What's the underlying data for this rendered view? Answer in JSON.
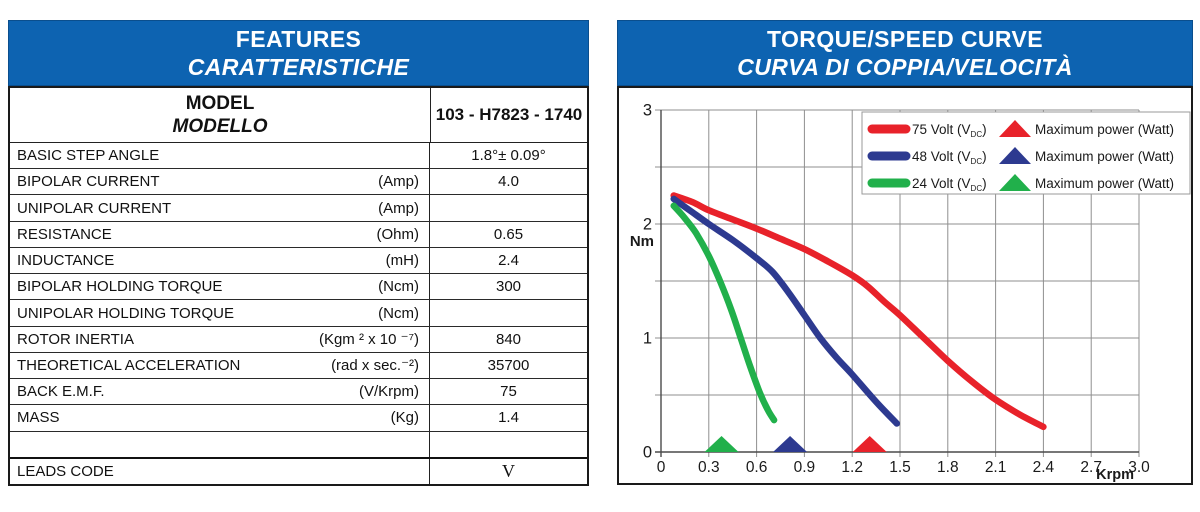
{
  "features_panel": {
    "title": "FEATURES",
    "subtitle": "CARATTERISTICHE",
    "model": {
      "label": "MODEL",
      "label_it": "MODELLO",
      "value": "103 - H7823 - 1740"
    },
    "rows": [
      {
        "label": "BASIC STEP ANGLE",
        "unit": "",
        "value": "1.8°± 0.09°"
      },
      {
        "label": "BIPOLAR CURRENT",
        "unit": "(Amp)",
        "value": "4.0"
      },
      {
        "label": "UNIPOLAR CURRENT",
        "unit": "(Amp)",
        "value": ""
      },
      {
        "label": "RESISTANCE",
        "unit": "(Ohm)",
        "value": "0.65"
      },
      {
        "label": "INDUCTANCE",
        "unit": "(mH)",
        "value": "2.4"
      },
      {
        "label": "BIPOLAR HOLDING TORQUE",
        "unit": "(Ncm)",
        "value": "300"
      },
      {
        "label": "UNIPOLAR HOLDING TORQUE",
        "unit": "(Ncm)",
        "value": ""
      },
      {
        "label": "ROTOR INERTIA",
        "unit": "(Kgm ² x 10 ⁻⁷)",
        "value": "840"
      },
      {
        "label": "THEORETICAL ACCELERATION",
        "unit": "(rad x sec.⁻²)",
        "value": "35700"
      },
      {
        "label": "BACK E.M.F.",
        "unit": "(V/Krpm)",
        "value": "75"
      },
      {
        "label": "MASS",
        "unit": "(Kg)",
        "value": "1.4"
      },
      {
        "label": "",
        "unit": "",
        "value": "",
        "spacer": true
      },
      {
        "label": "LEADS CODE",
        "unit": "",
        "value": "V",
        "serif_value": true,
        "thick_top": true
      }
    ]
  },
  "torque_panel": {
    "title": "TORQUE/SPEED CURVE",
    "subtitle": "CURVA DI COPPIA/VELOCITÀ"
  },
  "chart_data": {
    "type": "line",
    "title": "TORQUE/SPEED CURVE",
    "xlabel": "Krpm",
    "ylabel": "Nm",
    "xlim": [
      0,
      3.0
    ],
    "ylim": [
      0,
      3
    ],
    "x_ticks": [
      "0",
      "0.3",
      "0.6",
      "0.9",
      "1.2",
      "1.5",
      "1.8",
      "2.1",
      "2.4",
      "2.7",
      "3.0"
    ],
    "y_ticks": [
      "0",
      "1",
      "2",
      "3"
    ],
    "grid": true,
    "grid_x_step": 0.3,
    "grid_y_step": 0.5,
    "legend_position": "top-right",
    "grid_color": "#8f8f8f",
    "axis_color": "#4a4a4a",
    "series": [
      {
        "id": "75v",
        "label_pre": "75 Volt (V",
        "label_sub": "DC",
        "label_post": ")",
        "marker_label": "Maximum power (Watt)",
        "color": "#e8222a",
        "points": [
          [
            0.08,
            2.25
          ],
          [
            0.2,
            2.19
          ],
          [
            0.3,
            2.12
          ],
          [
            0.45,
            2.04
          ],
          [
            0.6,
            1.96
          ],
          [
            0.75,
            1.87
          ],
          [
            0.9,
            1.78
          ],
          [
            1.05,
            1.67
          ],
          [
            1.2,
            1.55
          ],
          [
            1.3,
            1.45
          ],
          [
            1.4,
            1.32
          ],
          [
            1.5,
            1.2
          ],
          [
            1.65,
            1.0
          ],
          [
            1.8,
            0.8
          ],
          [
            1.95,
            0.62
          ],
          [
            2.1,
            0.46
          ],
          [
            2.25,
            0.33
          ],
          [
            2.4,
            0.22
          ]
        ],
        "max_power_x": 1.31
      },
      {
        "id": "48v",
        "label_pre": "48 Volt (V",
        "label_sub": "DC",
        "label_post": ")",
        "marker_label": "Maximum power (Watt)",
        "color": "#2d3a90",
        "points": [
          [
            0.08,
            2.22
          ],
          [
            0.2,
            2.1
          ],
          [
            0.3,
            2.0
          ],
          [
            0.45,
            1.86
          ],
          [
            0.6,
            1.7
          ],
          [
            0.7,
            1.58
          ],
          [
            0.8,
            1.4
          ],
          [
            0.9,
            1.2
          ],
          [
            1.0,
            1.0
          ],
          [
            1.1,
            0.83
          ],
          [
            1.2,
            0.68
          ],
          [
            1.35,
            0.44
          ],
          [
            1.48,
            0.25
          ]
        ],
        "max_power_x": 0.81
      },
      {
        "id": "24v",
        "label_pre": "24 Volt (V",
        "label_sub": "DC",
        "label_post": ")",
        "marker_label": "Maximum power (Watt)",
        "color": "#21b04b",
        "points": [
          [
            0.08,
            2.16
          ],
          [
            0.15,
            2.05
          ],
          [
            0.22,
            1.92
          ],
          [
            0.3,
            1.72
          ],
          [
            0.37,
            1.5
          ],
          [
            0.44,
            1.25
          ],
          [
            0.5,
            1.0
          ],
          [
            0.56,
            0.75
          ],
          [
            0.62,
            0.52
          ],
          [
            0.67,
            0.37
          ],
          [
            0.71,
            0.28
          ]
        ],
        "max_power_x": 0.38
      }
    ]
  }
}
